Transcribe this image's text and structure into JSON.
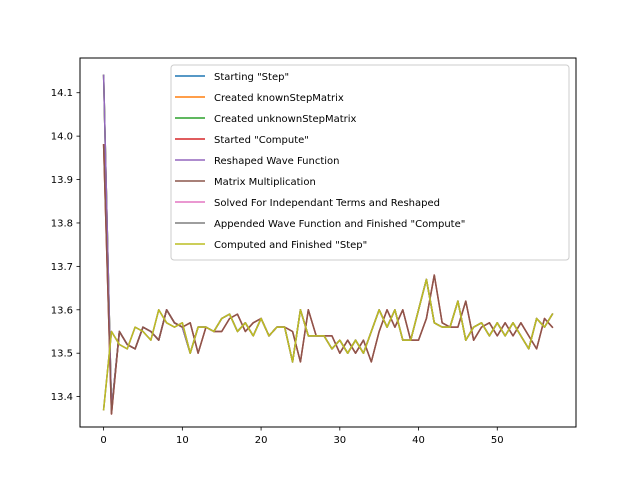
{
  "chart_data": {
    "type": "line",
    "title": "",
    "xlabel": "",
    "ylabel": "",
    "xlim": [
      -3,
      60
    ],
    "ylim": [
      13.33,
      14.18
    ],
    "x_ticks": [
      0,
      10,
      20,
      30,
      40,
      50
    ],
    "x_tick_labels": [
      "0",
      "10",
      "20",
      "30",
      "40",
      "50"
    ],
    "y_ticks": [
      13.4,
      13.5,
      13.6,
      13.7,
      13.8,
      13.9,
      14.0,
      14.1
    ],
    "y_tick_labels": [
      "13.4",
      "13.5",
      "13.6",
      "13.7",
      "13.8",
      "13.9",
      "14.0",
      "14.1"
    ],
    "grid": false,
    "legend_position": "top-right",
    "x": [
      0,
      1,
      2,
      3,
      4,
      5,
      6,
      7,
      8,
      9,
      10,
      11,
      12,
      13,
      14,
      15,
      16,
      17,
      18,
      19,
      20,
      21,
      22,
      23,
      24,
      25,
      26,
      27,
      28,
      29,
      30,
      31,
      32,
      33,
      34,
      35,
      36,
      37,
      38,
      39,
      40,
      41,
      42,
      43,
      44,
      45,
      46,
      47,
      48,
      49,
      50,
      51,
      52,
      53,
      54,
      55,
      56,
      57
    ],
    "series": [
      {
        "name": "Starting \"Step\"",
        "color": "#1f77b4",
        "values": [
          14.14,
          13.37,
          13.55,
          13.52,
          13.51,
          13.56,
          13.55,
          13.53,
          13.6,
          13.57,
          13.56,
          13.5,
          13.56,
          13.56,
          13.55,
          13.58,
          13.59,
          13.55,
          13.57,
          13.54,
          13.58,
          13.54,
          13.56,
          13.56,
          13.48,
          13.6,
          13.54,
          13.54,
          13.54,
          13.51,
          13.53,
          13.5,
          13.53,
          13.5,
          13.55,
          13.6,
          13.56,
          13.6,
          13.53,
          13.53,
          13.6,
          13.67,
          13.57,
          13.56,
          13.56,
          13.62,
          13.53,
          13.56,
          13.57,
          13.54,
          13.57,
          13.54,
          13.57,
          13.54,
          13.51,
          13.58,
          13.56,
          13.59
        ]
      },
      {
        "name": "Created knownStepMatrix",
        "color": "#ff7f0e",
        "values": [
          14.14,
          13.37,
          13.55,
          13.52,
          13.51,
          13.56,
          13.55,
          13.53,
          13.6,
          13.57,
          13.56,
          13.5,
          13.56,
          13.56,
          13.55,
          13.58,
          13.59,
          13.55,
          13.57,
          13.54,
          13.58,
          13.54,
          13.56,
          13.56,
          13.48,
          13.6,
          13.54,
          13.54,
          13.54,
          13.51,
          13.53,
          13.5,
          13.53,
          13.5,
          13.55,
          13.6,
          13.56,
          13.6,
          13.53,
          13.53,
          13.6,
          13.67,
          13.57,
          13.56,
          13.56,
          13.62,
          13.53,
          13.56,
          13.57,
          13.54,
          13.57,
          13.54,
          13.57,
          13.54,
          13.51,
          13.58,
          13.56,
          13.59
        ]
      },
      {
        "name": "Created unknownStepMatrix",
        "color": "#2ca02c",
        "values": [
          14.14,
          13.37,
          13.55,
          13.52,
          13.51,
          13.56,
          13.55,
          13.53,
          13.6,
          13.57,
          13.56,
          13.5,
          13.56,
          13.56,
          13.55,
          13.58,
          13.59,
          13.55,
          13.57,
          13.54,
          13.58,
          13.54,
          13.56,
          13.56,
          13.48,
          13.6,
          13.54,
          13.54,
          13.54,
          13.51,
          13.53,
          13.5,
          13.53,
          13.5,
          13.55,
          13.6,
          13.56,
          13.6,
          13.53,
          13.53,
          13.6,
          13.67,
          13.57,
          13.56,
          13.56,
          13.62,
          13.53,
          13.56,
          13.57,
          13.54,
          13.57,
          13.54,
          13.57,
          13.54,
          13.51,
          13.58,
          13.56,
          13.59
        ]
      },
      {
        "name": "Started \"Compute\"",
        "color": "#d62728",
        "values": [
          13.98,
          13.36,
          13.55,
          13.52,
          13.51,
          13.56,
          13.55,
          13.53,
          13.6,
          13.57,
          13.56,
          13.57,
          13.5,
          13.56,
          13.55,
          13.55,
          13.58,
          13.59,
          13.55,
          13.57,
          13.58,
          13.54,
          13.56,
          13.56,
          13.55,
          13.48,
          13.6,
          13.54,
          13.54,
          13.54,
          13.5,
          13.53,
          13.5,
          13.53,
          13.48,
          13.55,
          13.6,
          13.56,
          13.6,
          13.53,
          13.53,
          13.58,
          13.68,
          13.57,
          13.56,
          13.56,
          13.62,
          13.53,
          13.56,
          13.57,
          13.54,
          13.57,
          13.54,
          13.57,
          13.54,
          13.51,
          13.58,
          13.56
        ]
      },
      {
        "name": "Reshaped Wave Function",
        "color": "#9467bd",
        "values": [
          14.14,
          13.37,
          13.55,
          13.52,
          13.51,
          13.56,
          13.55,
          13.53,
          13.6,
          13.57,
          13.56,
          13.5,
          13.56,
          13.56,
          13.55,
          13.58,
          13.59,
          13.55,
          13.57,
          13.54,
          13.58,
          13.54,
          13.56,
          13.56,
          13.48,
          13.6,
          13.54,
          13.54,
          13.54,
          13.51,
          13.53,
          13.5,
          13.53,
          13.5,
          13.55,
          13.6,
          13.56,
          13.6,
          13.53,
          13.53,
          13.6,
          13.67,
          13.57,
          13.56,
          13.56,
          13.62,
          13.53,
          13.56,
          13.57,
          13.54,
          13.57,
          13.54,
          13.57,
          13.54,
          13.51,
          13.58,
          13.56,
          13.59
        ]
      },
      {
        "name": "Matrix Multiplication",
        "color": "#8c564b",
        "values": [
          13.98,
          13.36,
          13.55,
          13.52,
          13.51,
          13.56,
          13.55,
          13.53,
          13.6,
          13.57,
          13.56,
          13.57,
          13.5,
          13.56,
          13.55,
          13.55,
          13.58,
          13.59,
          13.55,
          13.57,
          13.58,
          13.54,
          13.56,
          13.56,
          13.55,
          13.48,
          13.6,
          13.54,
          13.54,
          13.54,
          13.5,
          13.53,
          13.5,
          13.53,
          13.48,
          13.55,
          13.6,
          13.56,
          13.6,
          13.53,
          13.53,
          13.58,
          13.68,
          13.57,
          13.56,
          13.56,
          13.62,
          13.53,
          13.56,
          13.57,
          13.54,
          13.57,
          13.54,
          13.57,
          13.54,
          13.51,
          13.58,
          13.56
        ]
      },
      {
        "name": "Solved For Independant Terms and Reshaped",
        "color": "#e377c2",
        "values": [
          13.37,
          13.55,
          13.52,
          13.51,
          13.56,
          13.55,
          13.53,
          13.6,
          13.57,
          13.56,
          13.57,
          13.5,
          13.56,
          13.56,
          13.55,
          13.58,
          13.59,
          13.55,
          13.57,
          13.54,
          13.58,
          13.54,
          13.56,
          13.56,
          13.48,
          13.6,
          13.54,
          13.54,
          13.54,
          13.51,
          13.53,
          13.5,
          13.53,
          13.5,
          13.55,
          13.6,
          13.56,
          13.6,
          13.53,
          13.53,
          13.6,
          13.67,
          13.57,
          13.56,
          13.56,
          13.62,
          13.53,
          13.56,
          13.57,
          13.54,
          13.57,
          13.54,
          13.57,
          13.54,
          13.51,
          13.58,
          13.56,
          13.59
        ]
      },
      {
        "name": "Appended Wave Function and Finished \"Compute\"",
        "color": "#7f7f7f",
        "values": [
          13.37,
          13.55,
          13.52,
          13.51,
          13.56,
          13.55,
          13.53,
          13.6,
          13.57,
          13.56,
          13.57,
          13.5,
          13.56,
          13.56,
          13.55,
          13.58,
          13.59,
          13.55,
          13.57,
          13.54,
          13.58,
          13.54,
          13.56,
          13.56,
          13.48,
          13.6,
          13.54,
          13.54,
          13.54,
          13.51,
          13.53,
          13.5,
          13.53,
          13.5,
          13.55,
          13.6,
          13.56,
          13.6,
          13.53,
          13.53,
          13.6,
          13.67,
          13.57,
          13.56,
          13.56,
          13.62,
          13.53,
          13.56,
          13.57,
          13.54,
          13.57,
          13.54,
          13.57,
          13.54,
          13.51,
          13.58,
          13.56,
          13.59
        ]
      },
      {
        "name": "Computed and Finished \"Step\"",
        "color": "#bcbd22",
        "values": [
          13.37,
          13.55,
          13.52,
          13.51,
          13.56,
          13.55,
          13.53,
          13.6,
          13.57,
          13.56,
          13.57,
          13.5,
          13.56,
          13.56,
          13.55,
          13.58,
          13.59,
          13.55,
          13.57,
          13.54,
          13.58,
          13.54,
          13.56,
          13.56,
          13.48,
          13.6,
          13.54,
          13.54,
          13.54,
          13.51,
          13.53,
          13.5,
          13.53,
          13.5,
          13.55,
          13.6,
          13.56,
          13.6,
          13.53,
          13.53,
          13.6,
          13.67,
          13.57,
          13.56,
          13.56,
          13.62,
          13.53,
          13.56,
          13.57,
          13.54,
          13.57,
          13.54,
          13.57,
          13.54,
          13.51,
          13.58,
          13.56,
          13.59
        ]
      }
    ]
  }
}
